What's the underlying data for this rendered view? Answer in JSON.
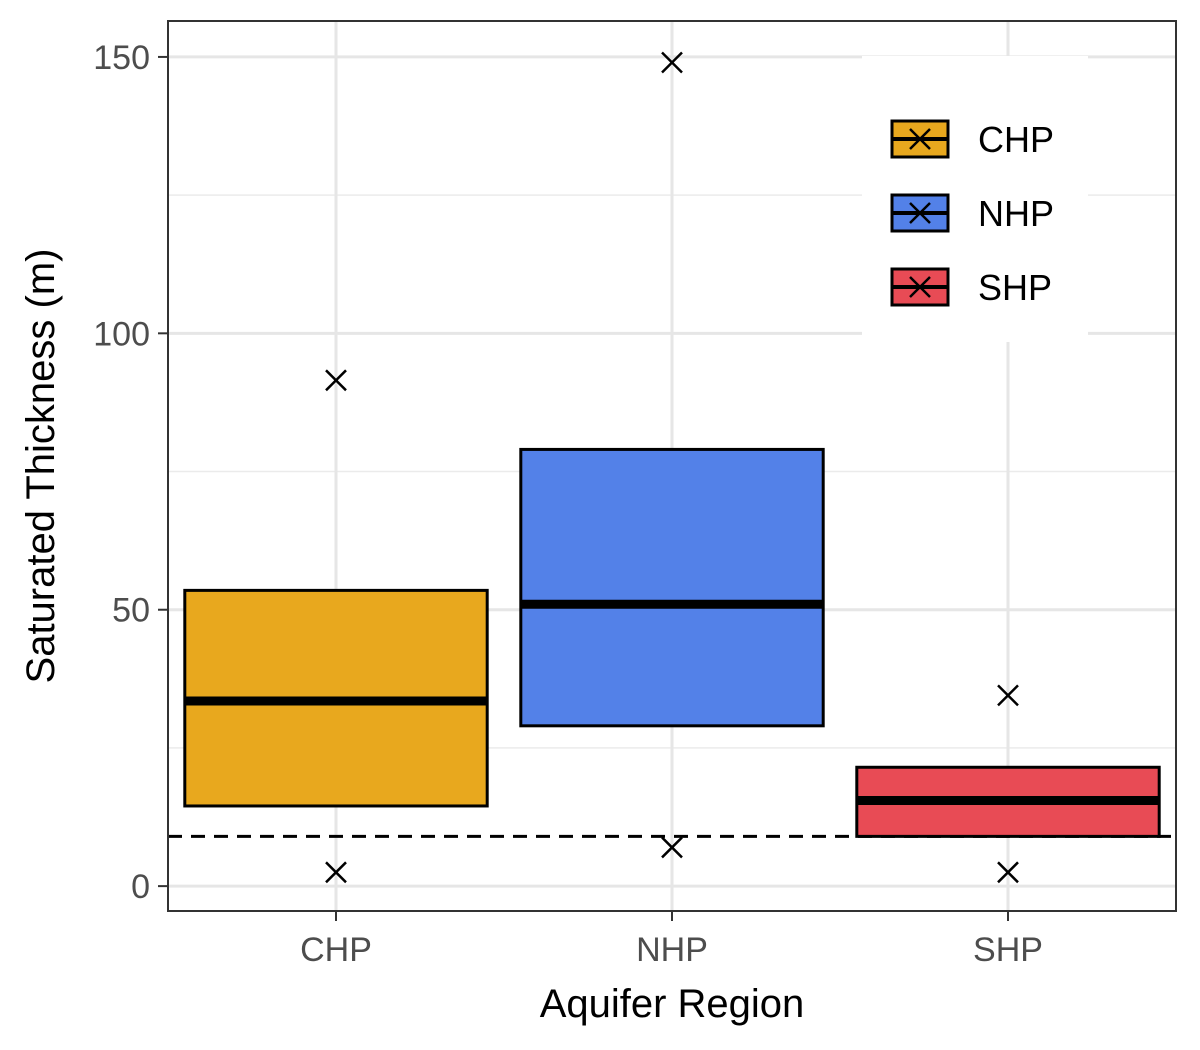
{
  "chart_data": {
    "type": "box",
    "xlabel": "Aquifer Region",
    "ylabel": "Saturated Thickness (m)",
    "categories": [
      "CHP",
      "NHP",
      "SHP"
    ],
    "ylim": [
      -4.5,
      156.5
    ],
    "y_ticks": [
      0,
      50,
      100,
      150
    ],
    "grid": true,
    "theme": "bw",
    "boxes": [
      {
        "category": "CHP",
        "q1": 14.5,
        "median": 33.5,
        "q3": 53.5,
        "lower_mark": 2.5,
        "upper_mark": 91.5,
        "color": "#E8A81E"
      },
      {
        "category": "NHP",
        "q1": 29.0,
        "median": 51.0,
        "q3": 79.0,
        "lower_mark": 7.0,
        "upper_mark": 149.0,
        "color": "#5381E8"
      },
      {
        "category": "SHP",
        "q1": 9.0,
        "median": 15.5,
        "q3": 21.5,
        "lower_mark": 2.5,
        "upper_mark": 34.5,
        "color": "#E84B55"
      }
    ],
    "reference_line": {
      "y": 9.0,
      "style": "dashed"
    },
    "legend": {
      "position": "top-right",
      "entries": [
        {
          "label": "CHP",
          "color": "#E8A81E"
        },
        {
          "label": "NHP",
          "color": "#5381E8"
        },
        {
          "label": "SHP",
          "color": "#E84B55"
        }
      ]
    }
  }
}
